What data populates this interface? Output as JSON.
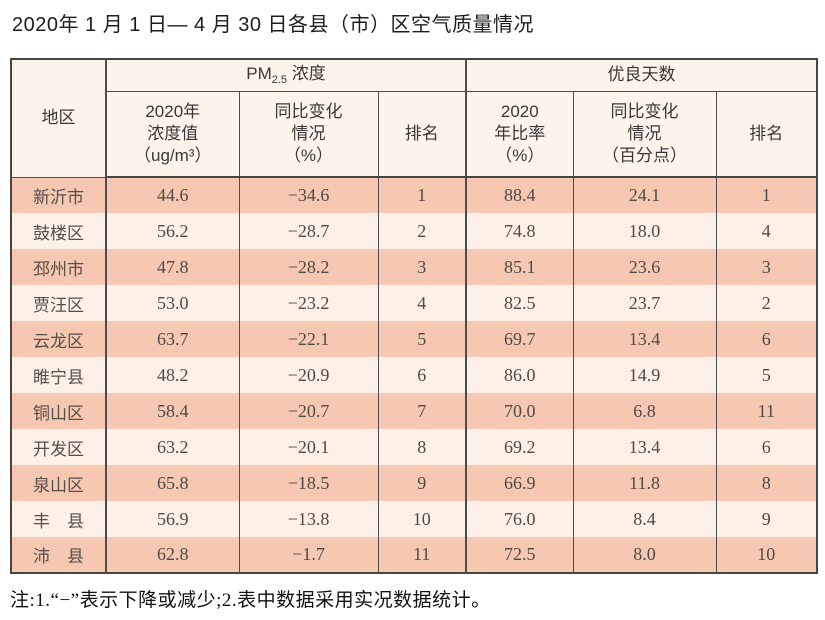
{
  "title": "2020年 1 月 1 日— 4 月 30 日各县（市）区空气质量情况",
  "table": {
    "corner_header": "地区",
    "group1": {
      "prefix": "PM",
      "subscript": "2.5",
      "suffix": " 浓度"
    },
    "group2": "优良天数",
    "subheaders": {
      "pm_value": "2020年\n浓度值\n（ug/m³）",
      "pm_change": "同比变化\n情况\n（%）",
      "pm_rank": "排名",
      "good_ratio": "2020\n年比率\n（%）",
      "good_change": "同比变化\n情况\n（百分点）",
      "good_rank": "排名"
    },
    "rows": [
      {
        "region": "新沂市",
        "pm25_value": "44.6",
        "pm25_change": "−34.6",
        "pm25_rank": "1",
        "good_ratio": "88.4",
        "good_change": "24.1",
        "good_rank": "1"
      },
      {
        "region": "鼓楼区",
        "pm25_value": "56.2",
        "pm25_change": "−28.7",
        "pm25_rank": "2",
        "good_ratio": "74.8",
        "good_change": "18.0",
        "good_rank": "4"
      },
      {
        "region": "邳州市",
        "pm25_value": "47.8",
        "pm25_change": "−28.2",
        "pm25_rank": "3",
        "good_ratio": "85.1",
        "good_change": "23.6",
        "good_rank": "3"
      },
      {
        "region": "贾汪区",
        "pm25_value": "53.0",
        "pm25_change": "−23.2",
        "pm25_rank": "4",
        "good_ratio": "82.5",
        "good_change": "23.7",
        "good_rank": "2"
      },
      {
        "region": "云龙区",
        "pm25_value": "63.7",
        "pm25_change": "−22.1",
        "pm25_rank": "5",
        "good_ratio": "69.7",
        "good_change": "13.4",
        "good_rank": "6"
      },
      {
        "region": "睢宁县",
        "pm25_value": "48.2",
        "pm25_change": "−20.9",
        "pm25_rank": "6",
        "good_ratio": "86.0",
        "good_change": "14.9",
        "good_rank": "5"
      },
      {
        "region": "铜山区",
        "pm25_value": "58.4",
        "pm25_change": "−20.7",
        "pm25_rank": "7",
        "good_ratio": "70.0",
        "good_change": "6.8",
        "good_rank": "11"
      },
      {
        "region": "开发区",
        "pm25_value": "63.2",
        "pm25_change": "−20.1",
        "pm25_rank": "8",
        "good_ratio": "69.2",
        "good_change": "13.4",
        "good_rank": "6"
      },
      {
        "region": "泉山区",
        "pm25_value": "65.8",
        "pm25_change": "−18.5",
        "pm25_rank": "9",
        "good_ratio": "66.9",
        "good_change": "11.8",
        "good_rank": "8"
      },
      {
        "region": "丰　县",
        "pm25_value": "56.9",
        "pm25_change": "−13.8",
        "pm25_rank": "10",
        "good_ratio": "76.0",
        "good_change": "8.4",
        "good_rank": "9"
      },
      {
        "region": "沛　县",
        "pm25_value": "62.8",
        "pm25_change": "−1.7",
        "pm25_rank": "11",
        "good_ratio": "72.5",
        "good_change": "8.0",
        "good_rank": "10"
      }
    ]
  },
  "note": "注:1.“−”表示下降或减少;2.表中数据采用实况数据统计。",
  "colors": {
    "row_stripe_dark": "#f7c8b1",
    "row_stripe_light": "#fdf0e7",
    "header_bg": "#fcf3ea",
    "border": "#4d4d4d",
    "title_text": "#1d1d1d",
    "data_text": "#4f4a45"
  }
}
